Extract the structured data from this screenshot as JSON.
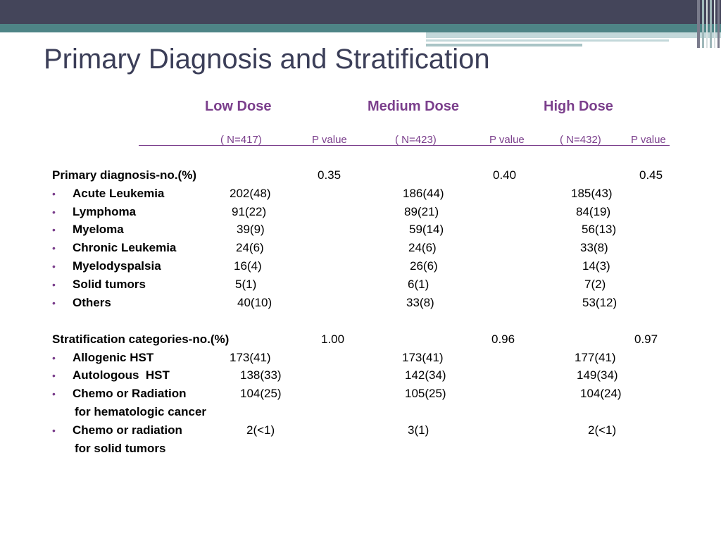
{
  "slide": {
    "title": "Primary Diagnosis and Stratification",
    "bullet_char": "•",
    "columns": {
      "low": "Low Dose",
      "medium": "Medium Dose",
      "high": "High Dose"
    },
    "subheaders": {
      "low_n": "( N=417)",
      "low_p": "P value",
      "medium_n": "( N=423)",
      "medium_p": "P value",
      "high_n": "( N=432)",
      "high_p": "P value"
    },
    "section1": {
      "label": "Primary diagnosis-no.(%)",
      "p_low": "0.35",
      "p_medium": "0.40",
      "p_high": "0.45",
      "rows": [
        {
          "name": "Acute Leukemia",
          "low": "202(48)",
          "medium": "186(44)",
          "high": "185(43)"
        },
        {
          "name": "Lymphoma",
          "low": "91(22)",
          "medium": "89(21)",
          "high": "84(19)"
        },
        {
          "name": "Myeloma",
          "low": "39(9)",
          "medium": "59(14)",
          "high": "56(13)"
        },
        {
          "name": "Chronic Leukemia",
          "low": "24(6)",
          "medium": "24(6)",
          "high": "33(8)"
        },
        {
          "name": "Myelodyspalsia",
          "low": "16(4)",
          "medium": "26(6)",
          "high": "14(3)"
        },
        {
          "name": "Solid tumors",
          "low": "5(1)",
          "medium": "6(1)",
          "high": "7(2)"
        },
        {
          "name": "Others",
          "low": "40(10)",
          "medium": "33(8)",
          "high": "53(12)"
        }
      ]
    },
    "section2": {
      "label": "Stratification categories-no.(%)",
      "p_low": "1.00",
      "p_medium": "0.96",
      "p_high": "0.97",
      "rows": [
        {
          "name": "Allogenic HST",
          "low": "173(41)",
          "medium": "173(41)",
          "high": "177(41)"
        },
        {
          "name": "Autologous  HST",
          "low": "138(33)",
          "medium": "142(34)",
          "high": "149(34)"
        },
        {
          "name": "Chemo or Radiation",
          "name2": "for hematologic cancer",
          "low": "104(25)",
          "medium": "105(25)",
          "high": "104(24)"
        },
        {
          "name": "Chemo or radiation",
          "name2": "for solid tumors",
          "low": "2(<1)",
          "medium": "3(1)",
          "high": "2(<1)"
        }
      ]
    }
  }
}
